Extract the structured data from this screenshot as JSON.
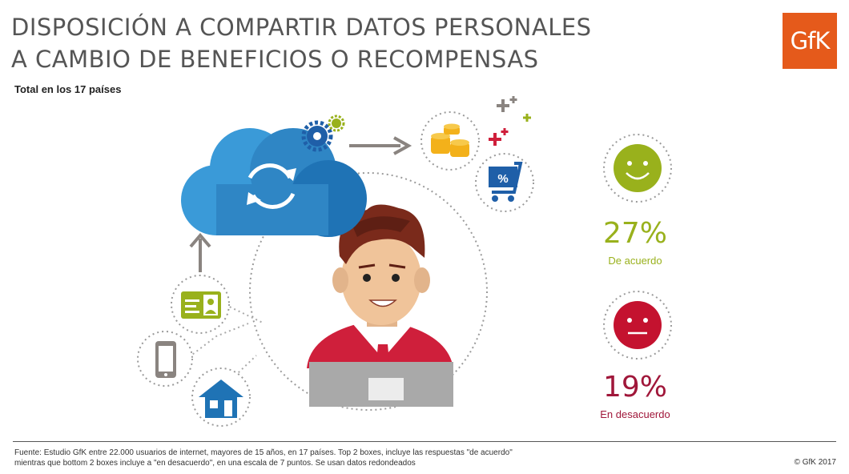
{
  "header": {
    "title_line1": "DISPOSICIÓN A COMPARTIR DATOS PERSONALES",
    "title_line2": "A CAMBIO DE BENEFICIOS O RECOMPENSAS",
    "subtitle": "Total en los 17 países",
    "logo": "GfK"
  },
  "chart_data": {
    "type": "bar",
    "title": "DISPOSICIÓN A COMPARTIR DATOS PERSONALES A CAMBIO DE BENEFICIOS O RECOMPENSAS",
    "subtitle": "Total en los 17 países",
    "categories": [
      "De acuerdo",
      "En desacuerdo"
    ],
    "values": [
      27,
      19
    ],
    "unit": "%",
    "colors": [
      "#99b11c",
      "#a0173a"
    ]
  },
  "stats": [
    {
      "value_label": "27%",
      "label": "De acuerdo",
      "color": "#99b11c",
      "icon": "smiley-face-icon"
    },
    {
      "value_label": "19%",
      "label": "En desacuerdo",
      "color": "#a0173a",
      "icon": "neutral-face-icon"
    }
  ],
  "footer": {
    "source_line1": "Fuente: Estudio GfK entre 22.000 usuarios de internet, mayores de 15 años, en 17 países. Top 2 boxes, incluye las respuestas \"de acuerdo\"",
    "source_line2": "mientras que bottom 2 boxes incluye a \"en desacuerdo\", en una escala de 7 puntos. Se usan datos redondeados",
    "copyright": "© GfK 2017"
  },
  "icons": [
    "cloud-sync-icon",
    "gears-icon",
    "arrow-right-icon",
    "arrow-up-icon",
    "coins-icon",
    "shopping-cart-icon",
    "plus-signs-icon",
    "id-card-icon",
    "smartphone-icon",
    "house-icon",
    "person-laptop-icon"
  ]
}
